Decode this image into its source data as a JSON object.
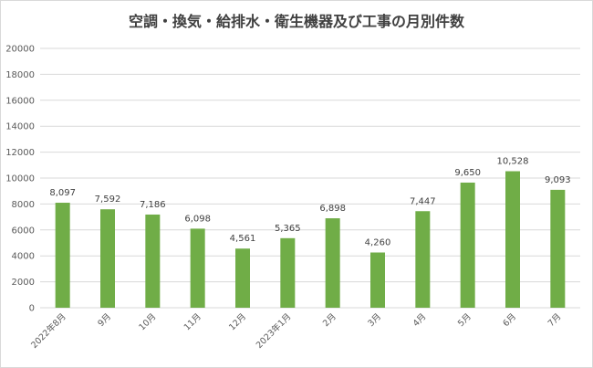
{
  "chart_data": {
    "type": "bar",
    "title": "空調・換気・給排水・衛生機器及び工事の月別件数",
    "categories": [
      "2022年8月",
      "9月",
      "10月",
      "11月",
      "12月",
      "2023年1月",
      "2月",
      "3月",
      "4月",
      "5月",
      "6月",
      "7月"
    ],
    "values": [
      8097,
      7592,
      7186,
      6098,
      4561,
      5365,
      6898,
      4260,
      7447,
      9650,
      10528,
      9093
    ],
    "data_labels": [
      "8,097",
      "7,592",
      "7,186",
      "6,098",
      "4,561",
      "5,365",
      "6,898",
      "4,260",
      "7,447",
      "9,650",
      "10,528",
      "9,093"
    ],
    "ylim": [
      0,
      20000
    ],
    "yticks": [
      0,
      2000,
      4000,
      6000,
      8000,
      10000,
      12000,
      14000,
      16000,
      18000,
      20000
    ],
    "ytick_labels": [
      "0",
      "2000",
      "4000",
      "6000",
      "8000",
      "10000",
      "12000",
      "14000",
      "16000",
      "18000",
      "20000"
    ],
    "grid": true,
    "bar_color": "#70ad47",
    "grid_color": "#d9d9d9"
  }
}
